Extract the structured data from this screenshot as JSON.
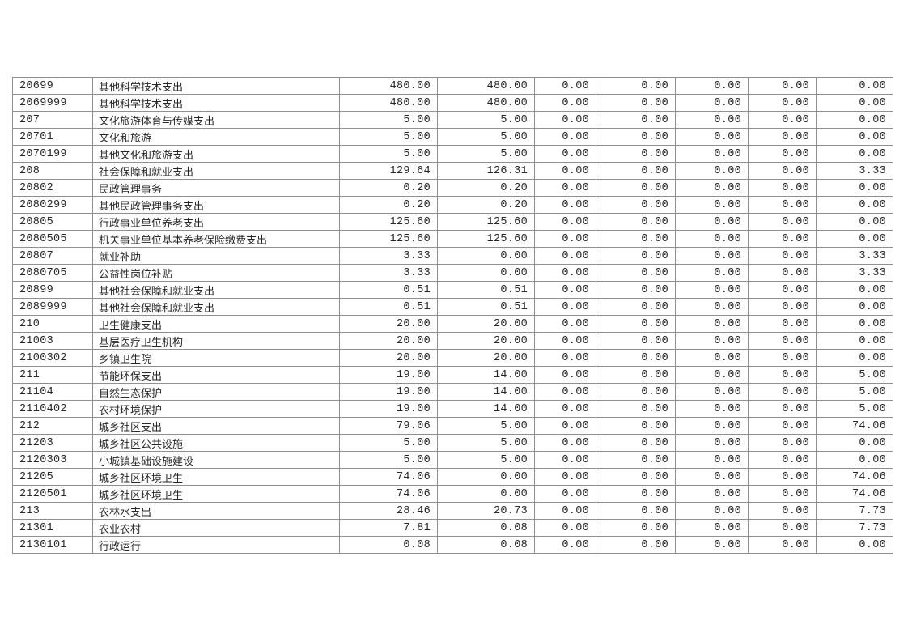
{
  "document": {
    "background_color": "#ffffff",
    "table_border_color": "#8f8f8f",
    "text_color": "#262626"
  },
  "table": {
    "rows": [
      {
        "code": "20699",
        "name": "其他科学技术支出",
        "values": [
          "480.00",
          "480.00",
          "0.00",
          "0.00",
          "0.00",
          "0.00",
          "0.00"
        ]
      },
      {
        "code": "2069999",
        "name": "其他科学技术支出",
        "values": [
          "480.00",
          "480.00",
          "0.00",
          "0.00",
          "0.00",
          "0.00",
          "0.00"
        ]
      },
      {
        "code": "207",
        "name": "文化旅游体育与传媒支出",
        "values": [
          "5.00",
          "5.00",
          "0.00",
          "0.00",
          "0.00",
          "0.00",
          "0.00"
        ]
      },
      {
        "code": "20701",
        "name": "文化和旅游",
        "values": [
          "5.00",
          "5.00",
          "0.00",
          "0.00",
          "0.00",
          "0.00",
          "0.00"
        ]
      },
      {
        "code": "2070199",
        "name": "其他文化和旅游支出",
        "values": [
          "5.00",
          "5.00",
          "0.00",
          "0.00",
          "0.00",
          "0.00",
          "0.00"
        ]
      },
      {
        "code": "208",
        "name": "社会保障和就业支出",
        "values": [
          "129.64",
          "126.31",
          "0.00",
          "0.00",
          "0.00",
          "0.00",
          "3.33"
        ]
      },
      {
        "code": "20802",
        "name": "民政管理事务",
        "values": [
          "0.20",
          "0.20",
          "0.00",
          "0.00",
          "0.00",
          "0.00",
          "0.00"
        ]
      },
      {
        "code": "2080299",
        "name": "其他民政管理事务支出",
        "values": [
          "0.20",
          "0.20",
          "0.00",
          "0.00",
          "0.00",
          "0.00",
          "0.00"
        ]
      },
      {
        "code": "20805",
        "name": "行政事业单位养老支出",
        "values": [
          "125.60",
          "125.60",
          "0.00",
          "0.00",
          "0.00",
          "0.00",
          "0.00"
        ]
      },
      {
        "code": "2080505",
        "name": "机关事业单位基本养老保险缴费支出",
        "values": [
          "125.60",
          "125.60",
          "0.00",
          "0.00",
          "0.00",
          "0.00",
          "0.00"
        ]
      },
      {
        "code": "20807",
        "name": "就业补助",
        "values": [
          "3.33",
          "0.00",
          "0.00",
          "0.00",
          "0.00",
          "0.00",
          "3.33"
        ]
      },
      {
        "code": "2080705",
        "name": "公益性岗位补贴",
        "values": [
          "3.33",
          "0.00",
          "0.00",
          "0.00",
          "0.00",
          "0.00",
          "3.33"
        ]
      },
      {
        "code": "20899",
        "name": "其他社会保障和就业支出",
        "values": [
          "0.51",
          "0.51",
          "0.00",
          "0.00",
          "0.00",
          "0.00",
          "0.00"
        ]
      },
      {
        "code": "2089999",
        "name": "其他社会保障和就业支出",
        "values": [
          "0.51",
          "0.51",
          "0.00",
          "0.00",
          "0.00",
          "0.00",
          "0.00"
        ]
      },
      {
        "code": "210",
        "name": "卫生健康支出",
        "values": [
          "20.00",
          "20.00",
          "0.00",
          "0.00",
          "0.00",
          "0.00",
          "0.00"
        ]
      },
      {
        "code": "21003",
        "name": "基层医疗卫生机构",
        "values": [
          "20.00",
          "20.00",
          "0.00",
          "0.00",
          "0.00",
          "0.00",
          "0.00"
        ]
      },
      {
        "code": "2100302",
        "name": "乡镇卫生院",
        "values": [
          "20.00",
          "20.00",
          "0.00",
          "0.00",
          "0.00",
          "0.00",
          "0.00"
        ]
      },
      {
        "code": "211",
        "name": "节能环保支出",
        "values": [
          "19.00",
          "14.00",
          "0.00",
          "0.00",
          "0.00",
          "0.00",
          "5.00"
        ]
      },
      {
        "code": "21104",
        "name": "自然生态保护",
        "values": [
          "19.00",
          "14.00",
          "0.00",
          "0.00",
          "0.00",
          "0.00",
          "5.00"
        ]
      },
      {
        "code": "2110402",
        "name": "农村环境保护",
        "values": [
          "19.00",
          "14.00",
          "0.00",
          "0.00",
          "0.00",
          "0.00",
          "5.00"
        ]
      },
      {
        "code": "212",
        "name": "城乡社区支出",
        "values": [
          "79.06",
          "5.00",
          "0.00",
          "0.00",
          "0.00",
          "0.00",
          "74.06"
        ]
      },
      {
        "code": "21203",
        "name": "城乡社区公共设施",
        "values": [
          "5.00",
          "5.00",
          "0.00",
          "0.00",
          "0.00",
          "0.00",
          "0.00"
        ]
      },
      {
        "code": "2120303",
        "name": "小城镇基础设施建设",
        "values": [
          "5.00",
          "5.00",
          "0.00",
          "0.00",
          "0.00",
          "0.00",
          "0.00"
        ]
      },
      {
        "code": "21205",
        "name": "城乡社区环境卫生",
        "values": [
          "74.06",
          "0.00",
          "0.00",
          "0.00",
          "0.00",
          "0.00",
          "74.06"
        ]
      },
      {
        "code": "2120501",
        "name": "城乡社区环境卫生",
        "values": [
          "74.06",
          "0.00",
          "0.00",
          "0.00",
          "0.00",
          "0.00",
          "74.06"
        ]
      },
      {
        "code": "213",
        "name": "农林水支出",
        "values": [
          "28.46",
          "20.73",
          "0.00",
          "0.00",
          "0.00",
          "0.00",
          "7.73"
        ]
      },
      {
        "code": "21301",
        "name": "农业农村",
        "values": [
          "7.81",
          "0.08",
          "0.00",
          "0.00",
          "0.00",
          "0.00",
          "7.73"
        ]
      },
      {
        "code": "2130101",
        "name": "行政运行",
        "values": [
          "0.08",
          "0.08",
          "0.00",
          "0.00",
          "0.00",
          "0.00",
          "0.00"
        ]
      }
    ]
  }
}
